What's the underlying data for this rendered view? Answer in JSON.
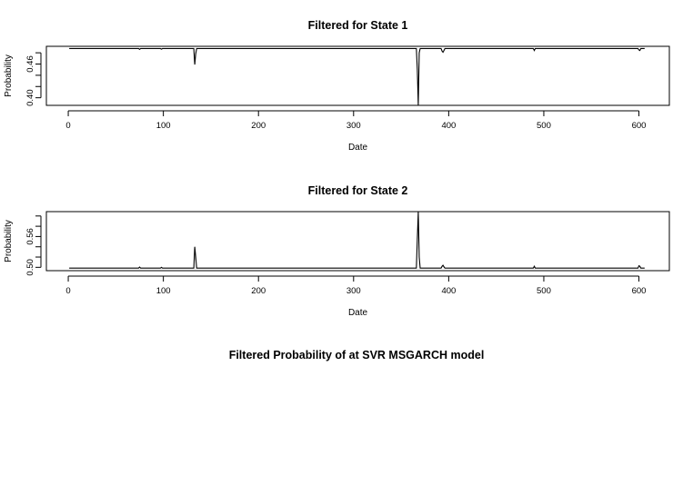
{
  "main_title": "Filtered Probability of at SVR MSGARCH model",
  "chart_data": [
    {
      "type": "line",
      "title": "Filtered for State 1",
      "xlabel": "Date",
      "ylabel": "Probability",
      "xlim": [
        -23,
        632
      ],
      "ylim": [
        0.3865,
        0.4915
      ],
      "xticks": [
        0,
        100,
        200,
        300,
        400,
        500,
        600
      ],
      "yticks": [
        0.4,
        0.42,
        0.44,
        0.46,
        0.48
      ],
      "ytick_labels": [
        "0.40",
        "",
        "",
        "0.46",
        ""
      ],
      "grid": false,
      "baseline": 0.4875,
      "n": 606,
      "spikes": [
        {
          "x": 75,
          "y": 0.486
        },
        {
          "x": 98,
          "y": 0.4865
        },
        {
          "x": 133,
          "y": 0.459
        },
        {
          "x": 134,
          "y": 0.478
        },
        {
          "x": 367,
          "y": 0.45
        },
        {
          "x": 368,
          "y": 0.387
        },
        {
          "x": 369,
          "y": 0.48
        },
        {
          "x": 393,
          "y": 0.483
        },
        {
          "x": 394,
          "y": 0.481
        },
        {
          "x": 395,
          "y": 0.484
        },
        {
          "x": 490,
          "y": 0.484
        },
        {
          "x": 600,
          "y": 0.485
        },
        {
          "x": 601,
          "y": 0.484
        }
      ]
    },
    {
      "type": "line",
      "title": "Filtered for State 2",
      "xlabel": "Date",
      "ylabel": "Probability",
      "xlim": [
        -23,
        632
      ],
      "ylim": [
        0.4935,
        0.6085
      ],
      "xticks": [
        0,
        100,
        200,
        300,
        400,
        500,
        600
      ],
      "yticks": [
        0.5,
        0.52,
        0.54,
        0.56,
        0.58,
        0.6
      ],
      "ytick_labels": [
        "0.50",
        "",
        "",
        "0.56",
        "",
        ""
      ],
      "grid": false,
      "baseline": 0.4985,
      "n": 606,
      "spikes": [
        {
          "x": 75,
          "y": 0.5005
        },
        {
          "x": 98,
          "y": 0.5
        },
        {
          "x": 133,
          "y": 0.54
        },
        {
          "x": 134,
          "y": 0.52
        },
        {
          "x": 367,
          "y": 0.555
        },
        {
          "x": 368,
          "y": 0.608
        },
        {
          "x": 369,
          "y": 0.52
        },
        {
          "x": 393,
          "y": 0.502
        },
        {
          "x": 394,
          "y": 0.504
        },
        {
          "x": 395,
          "y": 0.501
        },
        {
          "x": 490,
          "y": 0.502
        },
        {
          "x": 600,
          "y": 0.503
        },
        {
          "x": 601,
          "y": 0.502
        }
      ]
    }
  ]
}
